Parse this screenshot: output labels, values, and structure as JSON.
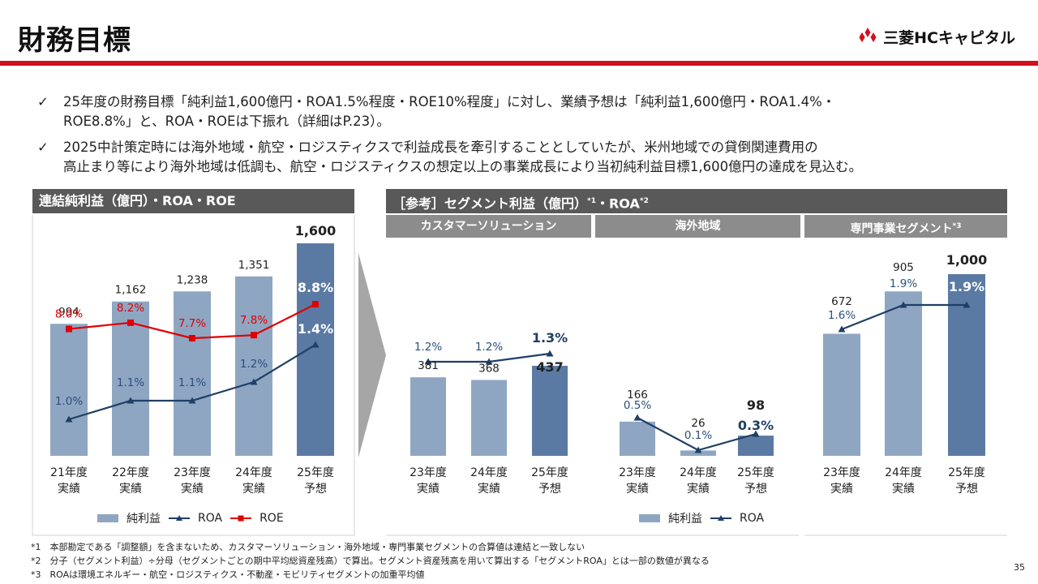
{
  "title": "財務目標",
  "logo": {
    "text": "三菱HCキャピタル"
  },
  "bullets": [
    {
      "check": "✓",
      "line1": "25年度の財務目標「純利益1,600億円・ROA1.5%程度・ROE10%程度」に対し、業績予想は「純利益1,600億円・ROA1.4%・",
      "line2": "ROE8.8%」と、ROA・ROEは下振れ（詳細はP.23）。"
    },
    {
      "check": "✓",
      "line1": "2025中計策定時には海外地域・航空・ロジスティクスで利益成長を牽引することとしていたが、米州地域での貸倒関連費用の",
      "line2": "高止まり等により海外地域は低調も、航空・ロジスティクスの想定以上の事業成長により当初純利益目標1,600億円の達成を見込む。"
    }
  ],
  "left_panel": {
    "header": "連結純利益（億円）・ROA・ROE"
  },
  "right_panel": {
    "header": "［参考］セグメント利益（億円）",
    "header_sup1": "*1",
    "header_mid": "・ROA",
    "header_sup2": "*2",
    "sub_headers": [
      "カスタマーソリューション",
      "海外地域",
      "専門事業セグメント"
    ],
    "sub3_sup": "*3"
  },
  "colors": {
    "bar_actual": "#8fa6c3",
    "bar_forecast": "#5a7aa3",
    "roa": "#1f3f66",
    "roe": "#e00000",
    "red_line": "#d20f1e"
  },
  "chart_data": [
    {
      "type": "bar",
      "categories": [
        [
          "21年度",
          "実績"
        ],
        [
          "22年度",
          "実績"
        ],
        [
          "23年度",
          "実績"
        ],
        [
          "24年度",
          "実績"
        ],
        [
          "25年度",
          "予想"
        ]
      ],
      "series": [
        {
          "name": "純利益",
          "values": [
            994,
            1162,
            1238,
            1351,
            1600
          ],
          "labels": [
            "994",
            "1,162",
            "1,238",
            "1,351",
            "1,600"
          ]
        },
        {
          "name": "ROA",
          "type": "line",
          "values": [
            1.0,
            1.1,
            1.1,
            1.2,
            1.4
          ],
          "labels": [
            "1.0%",
            "1.1%",
            "1.1%",
            "1.2%",
            "1.4%"
          ]
        },
        {
          "name": "ROE",
          "type": "line",
          "values": [
            8.0,
            8.2,
            7.7,
            7.8,
            8.8
          ],
          "labels": [
            "8.0%",
            "8.2%",
            "7.7%",
            "7.8%",
            "8.8%"
          ]
        }
      ]
    },
    {
      "type": "bar",
      "categories": [
        [
          "23年度",
          "実績"
        ],
        [
          "24年度",
          "実績"
        ],
        [
          "25年度",
          "予想"
        ]
      ],
      "series": [
        {
          "name": "純利益",
          "values": [
            381,
            368,
            437
          ],
          "labels": [
            "381",
            "368",
            "437"
          ]
        },
        {
          "name": "ROA",
          "type": "line",
          "values": [
            1.2,
            1.2,
            1.3
          ],
          "labels": [
            "1.2%",
            "1.2%",
            "1.3%"
          ]
        }
      ]
    },
    {
      "type": "bar",
      "categories": [
        [
          "23年度",
          "実績"
        ],
        [
          "24年度",
          "実績"
        ],
        [
          "25年度",
          "予想"
        ]
      ],
      "series": [
        {
          "name": "純利益",
          "values": [
            166,
            26,
            98
          ],
          "labels": [
            "166",
            "26",
            "98"
          ]
        },
        {
          "name": "ROA",
          "type": "line",
          "values": [
            0.5,
            0.1,
            0.3
          ],
          "labels": [
            "0.5%",
            "0.1%",
            "0.3%"
          ]
        }
      ]
    },
    {
      "type": "bar",
      "categories": [
        [
          "23年度",
          "実績"
        ],
        [
          "24年度",
          "実績"
        ],
        [
          "25年度",
          "予想"
        ]
      ],
      "series": [
        {
          "name": "純利益",
          "values": [
            672,
            905,
            1000
          ],
          "labels": [
            "672",
            "905",
            "1,000"
          ]
        },
        {
          "name": "ROA",
          "type": "line",
          "values": [
            1.6,
            1.9,
            1.9
          ],
          "labels": [
            "1.6%",
            "1.9%",
            "1.9%"
          ]
        }
      ]
    }
  ],
  "legend_left": [
    "純利益",
    "ROA",
    "ROE"
  ],
  "legend_right": [
    "純利益",
    "ROA"
  ],
  "footnotes": [
    "*1　本部勘定である「調整額」を含まないため、カスタマーソリューション・海外地域・専門事業セグメントの合算値は連結と一致しない",
    "*2　分子（セグメント利益）÷分母（セグメントごとの期中平均総資産残高）で算出。セグメント資産残高を用いて算出する「セグメントROA」とは一部の数値が異なる",
    "*3　ROAは環境エネルギー・航空・ロジスティクス・不動産・モビリティセグメントの加重平均値"
  ],
  "page_number": "35"
}
